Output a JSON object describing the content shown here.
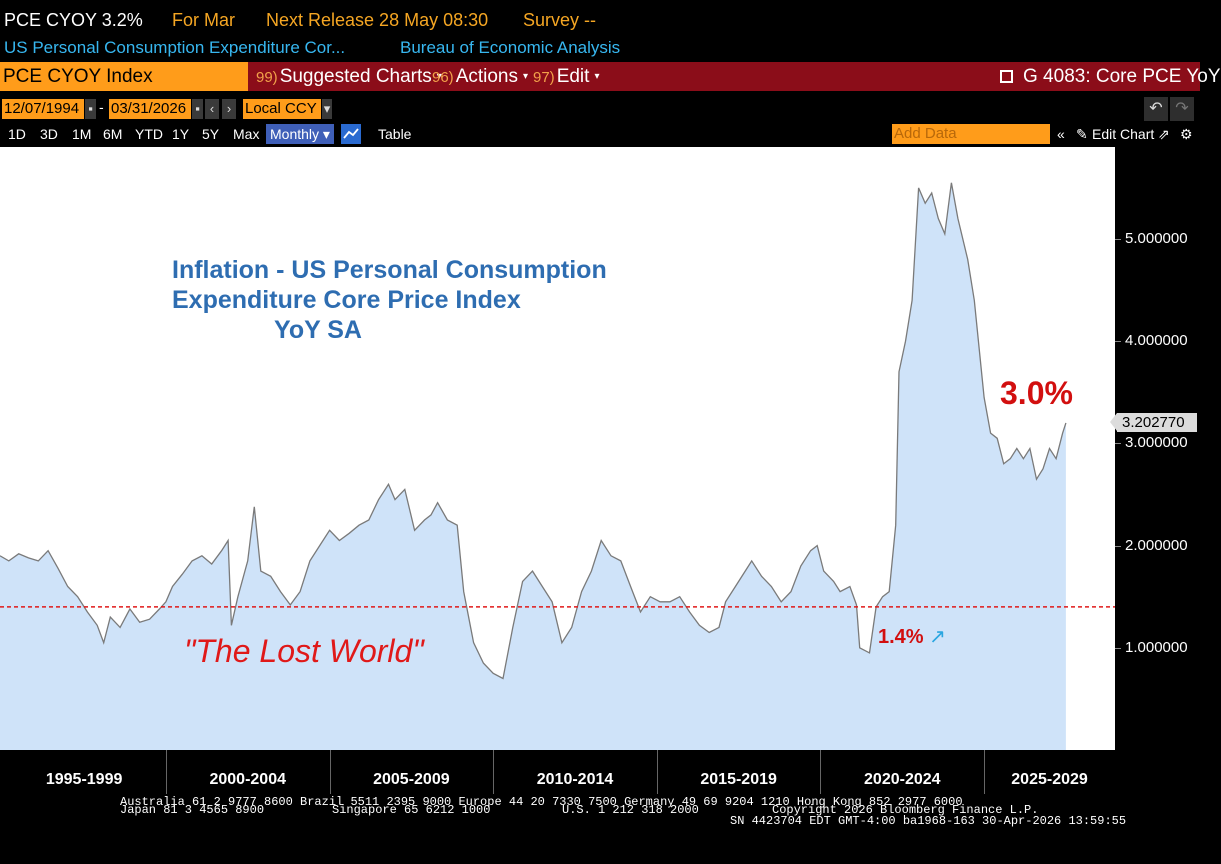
{
  "header": {
    "ticker_value": "PCE CYOY 3.2%",
    "for_period": "For Mar",
    "next_release": "Next Release 28 May 08:30",
    "survey": "Survey --",
    "security_name": "US Personal Consumption Expenditure Cor...",
    "source": "Bureau of Economic Analysis"
  },
  "toolbar": {
    "ticker_field": "PCE CYOY Index",
    "suggested_num": "99)",
    "suggested_label": "Suggested Charts",
    "actions_num": "96)",
    "actions_label": "Actions",
    "edit_num": "97)",
    "edit_label": "Edit",
    "chart_id": "G 4083: Core PCE YoY"
  },
  "datebar": {
    "start_date": "12/07/1994",
    "end_date": "03/31/2026",
    "currency": "Local CCY"
  },
  "periodbar": {
    "periods": [
      "1D",
      "3D",
      "1M",
      "6M",
      "YTD",
      "1Y",
      "5Y",
      "Max"
    ],
    "frequency": "Monthly",
    "table_label": "Table",
    "add_data_placeholder": "Add Data",
    "edit_chart_label": "Edit Chart"
  },
  "annotations": {
    "title_line1": "Inflation - US Personal Consumption",
    "title_line2": "Expenditure Core Price Index",
    "title_line3": "YoY SA",
    "big_value": "3.0%",
    "lost_world": "\"The Lost World\"",
    "ref_value": "1.4%",
    "last_value": "3.202770"
  },
  "footer": {
    "line1": "Australia 61 2 9777 8600 Brazil 5511 2395 9000 Europe 44 20 7330 7500 Germany 49 69 9204 1210 Hong Kong 852 2977 6000",
    "line2a": "Japan 81 3 4565 8900",
    "line2b": "Singapore 65 6212 1000",
    "line2c": "U.S. 1 212 318 2000",
    "line2d": "Copyright 2026 Bloomberg Finance L.P.",
    "line3": "SN 4423704 EDT  GMT-4:00 ba1968-163 30-Apr-2026 13:59:55"
  },
  "colors": {
    "line": "#7a7a7a",
    "area": "#cfe3f9",
    "reference_line": "#e01919",
    "title": "#2e6db1",
    "accent_orange": "#ff9c1a",
    "toolbar_red": "#8b0d19"
  },
  "chart_data": {
    "type": "area",
    "title": "Inflation - US Personal Consumption Expenditure Core Price Index YoY SA",
    "x_range": [
      1994.93,
      2029.0
    ],
    "y_range": [
      0.0,
      5.9
    ],
    "y_ticks": [
      1.0,
      2.0,
      3.0,
      4.0,
      5.0
    ],
    "y_tick_labels": [
      "1.000000",
      "2.000000",
      "3.000000",
      "4.000000",
      "5.000000"
    ],
    "x_categories": [
      "1995-1999",
      "2000-2004",
      "2005-2009",
      "2010-2014",
      "2015-2019",
      "2020-2024",
      "2025-2029"
    ],
    "reference_line": {
      "y": 1.4,
      "label": "1.4%"
    },
    "last_value": 3.20277,
    "series": [
      {
        "values": [
          [
            1994.93,
            1.9
          ],
          [
            1995.2,
            1.85
          ],
          [
            1995.5,
            1.92
          ],
          [
            1995.8,
            1.88
          ],
          [
            1996.1,
            1.85
          ],
          [
            1996.4,
            1.95
          ],
          [
            1996.7,
            1.78
          ],
          [
            1997.0,
            1.6
          ],
          [
            1997.3,
            1.5
          ],
          [
            1997.6,
            1.35
          ],
          [
            1997.9,
            1.22
          ],
          [
            1998.1,
            1.05
          ],
          [
            1998.3,
            1.3
          ],
          [
            1998.6,
            1.2
          ],
          [
            1998.9,
            1.38
          ],
          [
            1999.2,
            1.25
          ],
          [
            1999.5,
            1.28
          ],
          [
            1999.8,
            1.38
          ],
          [
            2000.0,
            1.45
          ],
          [
            2000.2,
            1.6
          ],
          [
            2000.5,
            1.72
          ],
          [
            2000.8,
            1.85
          ],
          [
            2001.1,
            1.9
          ],
          [
            2001.4,
            1.82
          ],
          [
            2001.7,
            1.95
          ],
          [
            2001.9,
            2.05
          ],
          [
            2002.0,
            1.22
          ],
          [
            2002.2,
            1.5
          ],
          [
            2002.5,
            1.85
          ],
          [
            2002.7,
            2.38
          ],
          [
            2002.9,
            1.75
          ],
          [
            2003.2,
            1.7
          ],
          [
            2003.5,
            1.55
          ],
          [
            2003.8,
            1.42
          ],
          [
            2004.1,
            1.55
          ],
          [
            2004.4,
            1.85
          ],
          [
            2004.7,
            2.0
          ],
          [
            2005.0,
            2.15
          ],
          [
            2005.3,
            2.05
          ],
          [
            2005.6,
            2.12
          ],
          [
            2005.9,
            2.2
          ],
          [
            2006.2,
            2.25
          ],
          [
            2006.5,
            2.45
          ],
          [
            2006.8,
            2.6
          ],
          [
            2007.0,
            2.45
          ],
          [
            2007.3,
            2.55
          ],
          [
            2007.6,
            2.15
          ],
          [
            2007.9,
            2.25
          ],
          [
            2008.1,
            2.3
          ],
          [
            2008.3,
            2.42
          ],
          [
            2008.6,
            2.25
          ],
          [
            2008.9,
            2.2
          ],
          [
            2009.1,
            1.55
          ],
          [
            2009.4,
            1.05
          ],
          [
            2009.7,
            0.85
          ],
          [
            2010.0,
            0.75
          ],
          [
            2010.3,
            0.7
          ],
          [
            2010.6,
            1.2
          ],
          [
            2010.9,
            1.65
          ],
          [
            2011.2,
            1.75
          ],
          [
            2011.5,
            1.6
          ],
          [
            2011.8,
            1.45
          ],
          [
            2012.1,
            1.05
          ],
          [
            2012.4,
            1.2
          ],
          [
            2012.7,
            1.55
          ],
          [
            2013.0,
            1.75
          ],
          [
            2013.3,
            2.05
          ],
          [
            2013.6,
            1.9
          ],
          [
            2013.9,
            1.85
          ],
          [
            2014.2,
            1.6
          ],
          [
            2014.5,
            1.35
          ],
          [
            2014.8,
            1.5
          ],
          [
            2015.1,
            1.45
          ],
          [
            2015.4,
            1.45
          ],
          [
            2015.7,
            1.5
          ],
          [
            2016.0,
            1.35
          ],
          [
            2016.3,
            1.22
          ],
          [
            2016.6,
            1.15
          ],
          [
            2016.9,
            1.2
          ],
          [
            2017.1,
            1.45
          ],
          [
            2017.4,
            1.6
          ],
          [
            2017.7,
            1.75
          ],
          [
            2017.9,
            1.85
          ],
          [
            2018.2,
            1.7
          ],
          [
            2018.5,
            1.6
          ],
          [
            2018.8,
            1.45
          ],
          [
            2019.1,
            1.55
          ],
          [
            2019.4,
            1.8
          ],
          [
            2019.7,
            1.95
          ],
          [
            2019.9,
            2.0
          ],
          [
            2020.1,
            1.75
          ],
          [
            2020.4,
            1.65
          ],
          [
            2020.6,
            1.55
          ],
          [
            2020.9,
            1.6
          ],
          [
            2021.1,
            1.42
          ],
          [
            2021.2,
            1.0
          ],
          [
            2021.5,
            0.95
          ],
          [
            2021.7,
            1.4
          ],
          [
            2021.9,
            1.5
          ],
          [
            2022.1,
            1.55
          ],
          [
            2022.3,
            2.2
          ],
          [
            2022.4,
            3.7
          ],
          [
            2022.6,
            4.0
          ],
          [
            2022.8,
            4.4
          ],
          [
            2023.0,
            5.5
          ],
          [
            2023.2,
            5.35
          ],
          [
            2023.4,
            5.45
          ],
          [
            2023.6,
            5.2
          ],
          [
            2023.8,
            5.05
          ],
          [
            2024.0,
            5.55
          ],
          [
            2024.2,
            5.2
          ],
          [
            2024.5,
            4.8
          ],
          [
            2024.7,
            4.4
          ],
          [
            2025.0,
            3.45
          ],
          [
            2025.2,
            3.1
          ],
          [
            2025.4,
            3.05
          ],
          [
            2025.6,
            2.8
          ],
          [
            2025.8,
            2.85
          ],
          [
            2026.0,
            2.95
          ],
          [
            2026.2,
            2.85
          ],
          [
            2026.4,
            2.95
          ],
          [
            2026.6,
            2.65
          ],
          [
            2026.8,
            2.75
          ],
          [
            2027.0,
            2.95
          ],
          [
            2027.2,
            2.85
          ],
          [
            2027.4,
            3.1
          ],
          [
            2027.5,
            3.2
          ]
        ]
      }
    ]
  }
}
